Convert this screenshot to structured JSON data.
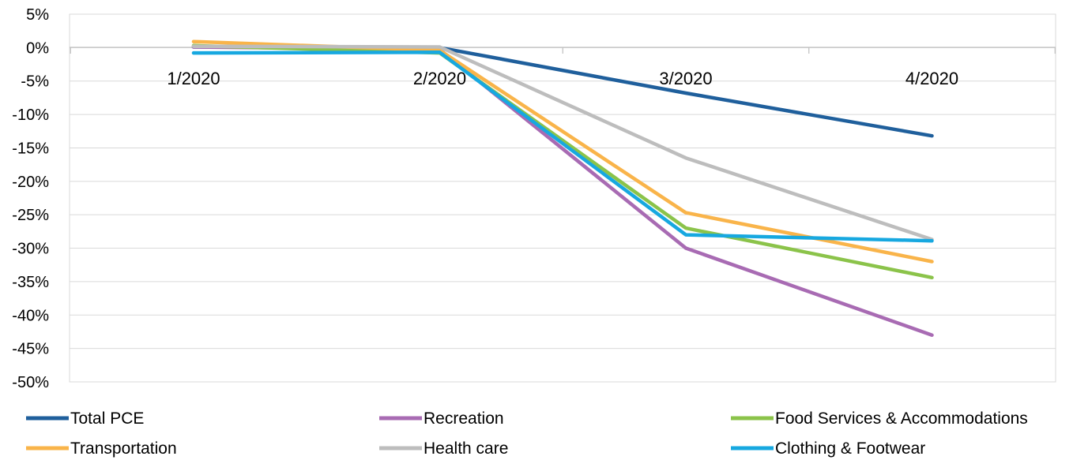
{
  "chart_data": {
    "type": "line",
    "title": "",
    "xlabel": "",
    "ylabel": "",
    "categories": [
      "1/2020",
      "2/2020",
      "3/2020",
      "4/2020"
    ],
    "ylim": [
      -50,
      5
    ],
    "ytick_step": 5,
    "y_unit": "%",
    "grid": true,
    "legend_position": "bottom",
    "series": [
      {
        "name": "Total PCE",
        "color": "#1F5F9C",
        "values": [
          0.1,
          0.0,
          -6.8,
          -13.2
        ]
      },
      {
        "name": "Recreation",
        "color": "#A86BB3",
        "values": [
          0.1,
          -0.3,
          -30.0,
          -43.0
        ]
      },
      {
        "name": "Food Services & Accommodations",
        "color": "#8BC34A",
        "values": [
          0.3,
          -0.8,
          -27.0,
          -34.4
        ]
      },
      {
        "name": "Transportation",
        "color": "#F9B44A",
        "values": [
          0.9,
          -0.4,
          -24.7,
          -32.0
        ]
      },
      {
        "name": "Health care",
        "color": "#BDBDBD",
        "values": [
          0.2,
          0.1,
          -16.5,
          -28.7
        ]
      },
      {
        "name": "Clothing & Footwear",
        "color": "#17A8E0",
        "values": [
          -0.8,
          -0.7,
          -28.0,
          -28.9
        ]
      }
    ]
  }
}
